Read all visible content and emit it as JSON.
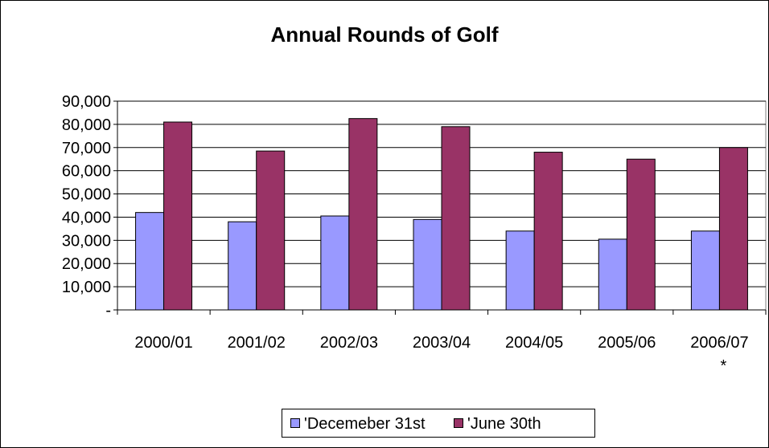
{
  "chart_data": {
    "type": "bar",
    "title": "Annual Rounds of Golf",
    "categories": [
      "2000/01",
      "2001/02",
      "2002/03",
      "2003/04",
      "2004/05",
      "2005/06",
      "2006/07"
    ],
    "category_notes": [
      "",
      "",
      "",
      "",
      "",
      "",
      "*"
    ],
    "series": [
      {
        "name": "'Decemeber 31st",
        "color": "#9999ff",
        "values": [
          42000,
          38000,
          40500,
          39000,
          34000,
          30500,
          34000
        ]
      },
      {
        "name": "'June 30th",
        "color": "#993366",
        "values": [
          81000,
          68500,
          82500,
          79000,
          68000,
          65000,
          70000
        ]
      }
    ],
    "ylim": [
      0,
      90000
    ],
    "yticks": [
      0,
      10000,
      20000,
      30000,
      40000,
      50000,
      60000,
      70000,
      80000,
      90000
    ],
    "ytick_labels": [
      "-",
      "10,000",
      "20,000",
      "30,000",
      "40,000",
      "50,000",
      "60,000",
      "70,000",
      "80,000",
      "90,000"
    ],
    "grid": true,
    "legend_position": "bottom"
  }
}
